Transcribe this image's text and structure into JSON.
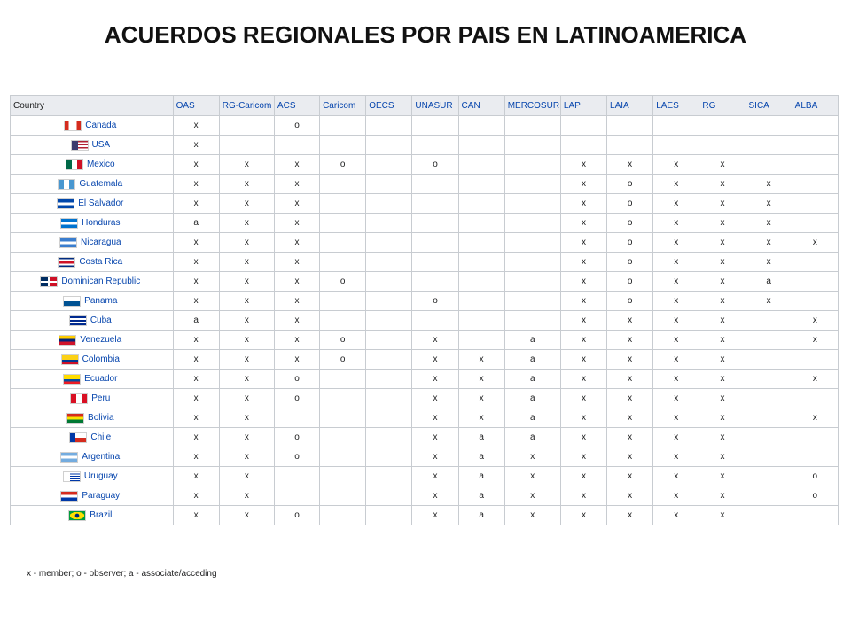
{
  "title": "ACUERDOS REGIONALES POR PAIS EN LATINOAMERICA",
  "legend": "x - member; o - observer; a - associate/acceding",
  "table": {
    "country_header": "Country",
    "columns": [
      "OAS",
      "RG-Caricom",
      "ACS",
      "Caricom",
      "OECS",
      "UNASUR",
      "CAN",
      "MERCOSUR",
      "LAP",
      "LAIA",
      "LAES",
      "RG",
      "SICA",
      "ALBA"
    ],
    "rows": [
      {
        "country": "Canada",
        "flag": "canada-flag-icon",
        "flag_bg": "linear-gradient(90deg,#d52b1e 0 25%,#ffffff 25% 75%,#d52b1e 75% 100%)",
        "cells": [
          "x",
          "",
          "o",
          "",
          "",
          "",
          "",
          "",
          "",
          "",
          "",
          "",
          "",
          ""
        ]
      },
      {
        "country": "USA",
        "flag": "usa-flag-icon",
        "flag_bg": "linear-gradient(90deg,#3c3b6e 0 40%,transparent 40%),repeating-linear-gradient(180deg,#b22234 0 1.7px,#ffffff 1.7px 3.4px)",
        "cells": [
          "x",
          "",
          "",
          "",
          "",
          "",
          "",
          "",
          "",
          "",
          "",
          "",
          "",
          ""
        ]
      },
      {
        "country": "Mexico",
        "flag": "mexico-flag-icon",
        "flag_bg": "linear-gradient(90deg,#006847 0 33%,#ffffff 33% 67%,#ce1126 67% 100%)",
        "cells": [
          "x",
          "x",
          "x",
          "o",
          "",
          "o",
          "",
          "",
          "x",
          "x",
          "x",
          "x",
          "",
          ""
        ]
      },
      {
        "country": "Guatemala",
        "flag": "guatemala-flag-icon",
        "flag_bg": "linear-gradient(90deg,#4997d0 0 33%,#ffffff 33% 67%,#4997d0 67% 100%)",
        "cells": [
          "x",
          "x",
          "x",
          "",
          "",
          "",
          "",
          "",
          "x",
          "o",
          "x",
          "x",
          "x",
          ""
        ]
      },
      {
        "country": "El Salvador",
        "flag": "el-salvador-flag-icon",
        "flag_bg": "linear-gradient(180deg,#0047ab 0 33%,#ffffff 33% 67%,#0047ab 67% 100%)",
        "cells": [
          "x",
          "x",
          "x",
          "",
          "",
          "",
          "",
          "",
          "x",
          "o",
          "x",
          "x",
          "x",
          ""
        ]
      },
      {
        "country": "Honduras",
        "flag": "honduras-flag-icon",
        "flag_bg": "linear-gradient(180deg,#0073cf 0 33%,#ffffff 33% 67%,#0073cf 67% 100%)",
        "cells": [
          "a",
          "x",
          "x",
          "",
          "",
          "",
          "",
          "",
          "x",
          "o",
          "x",
          "x",
          "x",
          ""
        ]
      },
      {
        "country": "Nicaragua",
        "flag": "nicaragua-flag-icon",
        "flag_bg": "linear-gradient(180deg,#3a7dce 0 33%,#ffffff 33% 67%,#3a7dce 67% 100%)",
        "cells": [
          "x",
          "x",
          "x",
          "",
          "",
          "",
          "",
          "",
          "x",
          "o",
          "x",
          "x",
          "x",
          "x"
        ]
      },
      {
        "country": "Costa Rica",
        "flag": "costa-rica-flag-icon",
        "flag_bg": "linear-gradient(180deg,#002b7f 0 17%,#ffffff 17% 33%,#ce1126 33% 67%,#ffffff 67% 83%,#002b7f 83% 100%)",
        "cells": [
          "x",
          "x",
          "x",
          "",
          "",
          "",
          "",
          "",
          "x",
          "o",
          "x",
          "x",
          "x",
          ""
        ]
      },
      {
        "country": "Dominican Republic",
        "flag": "dominican-republic-flag-icon",
        "flag_bg": "linear-gradient(90deg,transparent 44%,#ffffff 44% 56%,transparent 56%),linear-gradient(180deg,transparent 40%,#ffffff 40% 60%,transparent 60%),linear-gradient(90deg,#002d62 0 50%,#ce1126 50% 100%)",
        "cells": [
          "x",
          "x",
          "x",
          "o",
          "",
          "",
          "",
          "",
          "x",
          "o",
          "x",
          "x",
          "a",
          ""
        ]
      },
      {
        "country": "Panama",
        "flag": "panama-flag-icon",
        "flag_bg": "linear-gradient(180deg,#ffffff 0 50%,#005293 50% 100%)",
        "cells": [
          "x",
          "x",
          "x",
          "",
          "",
          "o",
          "",
          "",
          "x",
          "o",
          "x",
          "x",
          "x",
          ""
        ]
      },
      {
        "country": "Cuba",
        "flag": "cuba-flag-icon",
        "flag_bg": "linear-gradient(180deg,#002a8f 0 20%,#ffffff 20% 40%,#002a8f 40% 60%,#ffffff 60% 80%,#002a8f 80% 100%)",
        "cells": [
          "a",
          "x",
          "x",
          "",
          "",
          "",
          "",
          "",
          "x",
          "x",
          "x",
          "x",
          "",
          "x"
        ]
      },
      {
        "country": "Venezuela",
        "flag": "venezuela-flag-icon",
        "flag_bg": "linear-gradient(180deg,#ffcc00 0 33%,#00247d 33% 67%,#cf142b 67% 100%)",
        "cells": [
          "x",
          "x",
          "x",
          "o",
          "",
          "x",
          "",
          "a",
          "x",
          "x",
          "x",
          "x",
          "",
          "x"
        ]
      },
      {
        "country": "Colombia",
        "flag": "colombia-flag-icon",
        "flag_bg": "linear-gradient(180deg,#fcd116 0 50%,#003893 50% 75%,#ce1126 75% 100%)",
        "cells": [
          "x",
          "x",
          "x",
          "o",
          "",
          "x",
          "x",
          "a",
          "x",
          "x",
          "x",
          "x",
          "",
          ""
        ]
      },
      {
        "country": "Ecuador",
        "flag": "ecuador-flag-icon",
        "flag_bg": "linear-gradient(180deg,#ffdd00 0 50%,#034ea2 50% 75%,#ed1c24 75% 100%)",
        "cells": [
          "x",
          "x",
          "o",
          "",
          "",
          "x",
          "x",
          "a",
          "x",
          "x",
          "x",
          "x",
          "",
          "x"
        ]
      },
      {
        "country": "Peru",
        "flag": "peru-flag-icon",
        "flag_bg": "linear-gradient(90deg,#d91023 0 33%,#ffffff 33% 67%,#d91023 67% 100%)",
        "cells": [
          "x",
          "x",
          "o",
          "",
          "",
          "x",
          "x",
          "a",
          "x",
          "x",
          "x",
          "x",
          "",
          ""
        ]
      },
      {
        "country": "Bolivia",
        "flag": "bolivia-flag-icon",
        "flag_bg": "linear-gradient(180deg,#d52b1e 0 33%,#f9e300 33% 67%,#007934 67% 100%)",
        "cells": [
          "x",
          "x",
          "",
          "",
          "",
          "x",
          "x",
          "a",
          "x",
          "x",
          "x",
          "x",
          "",
          "x"
        ]
      },
      {
        "country": "Chile",
        "flag": "chile-flag-icon",
        "flag_bg": "linear-gradient(90deg,#0039a6 0 33%,transparent 33%),linear-gradient(180deg,#ffffff 0 50%,#d52b1e 50% 100%)",
        "cells": [
          "x",
          "x",
          "o",
          "",
          "",
          "x",
          "a",
          "a",
          "x",
          "x",
          "x",
          "x",
          "",
          ""
        ]
      },
      {
        "country": "Argentina",
        "flag": "argentina-flag-icon",
        "flag_bg": "linear-gradient(180deg,#74acdf 0 33%,#ffffff 33% 67%,#74acdf 67% 100%)",
        "cells": [
          "x",
          "x",
          "o",
          "",
          "",
          "x",
          "a",
          "x",
          "x",
          "x",
          "x",
          "x",
          "",
          ""
        ]
      },
      {
        "country": "Uruguay",
        "flag": "uruguay-flag-icon",
        "flag_bg": "linear-gradient(90deg,#ffffff 0 40%,transparent 40%),repeating-linear-gradient(180deg,#ffffff 0 1.3px,#0038a8 1.3px 2.6px)",
        "cells": [
          "x",
          "x",
          "",
          "",
          "",
          "x",
          "a",
          "x",
          "x",
          "x",
          "x",
          "x",
          "",
          "o"
        ]
      },
      {
        "country": "Paraguay",
        "flag": "paraguay-flag-icon",
        "flag_bg": "linear-gradient(180deg,#d52b1e 0 33%,#ffffff 33% 67%,#0038a8 67% 100%)",
        "cells": [
          "x",
          "x",
          "",
          "",
          "",
          "x",
          "a",
          "x",
          "x",
          "x",
          "x",
          "x",
          "",
          "o"
        ]
      },
      {
        "country": "Brazil",
        "flag": "brazil-flag-icon",
        "flag_bg": "radial-gradient(circle at 50% 50%,#002776 0 22%,transparent 23%),radial-gradient(ellipse 46% 42% at 50% 50%,#fedf00 0 98%,transparent 100%),linear-gradient(#009c3b,#009c3b)",
        "cells": [
          "x",
          "x",
          "o",
          "",
          "",
          "x",
          "a",
          "x",
          "x",
          "x",
          "x",
          "x",
          "",
          ""
        ]
      }
    ]
  }
}
